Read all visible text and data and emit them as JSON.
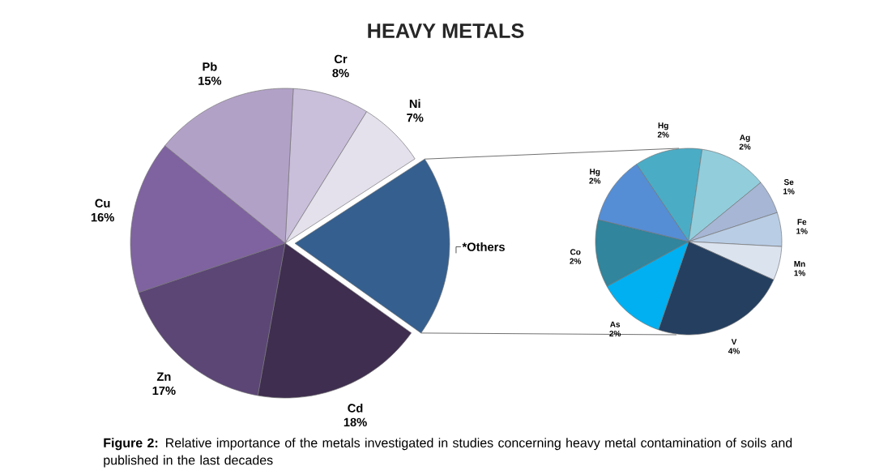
{
  "chart_data": [
    {
      "type": "pie",
      "title": "HEAVY METALS",
      "categories": [
        "Cr",
        "Ni",
        "*Others",
        "Cd",
        "Zn",
        "Cu",
        "Pb"
      ],
      "values": [
        8,
        7,
        19,
        18,
        17,
        16,
        15
      ],
      "value_labels": [
        "8%",
        "7%",
        null,
        "18%",
        "17%",
        "16%",
        "15%"
      ],
      "colors": [
        "#c9bfdb",
        "#e4e0ec",
        "#355f8e",
        "#3f2e4f",
        "#5b4675",
        "#7f63a0",
        "#b2a1c7"
      ],
      "annotations": [
        "**Figure 2:** Relative importance of the metals investigated in studies concerning heavy metal contamination of soils and published in the last decades"
      ]
    },
    {
      "type": "pie",
      "categories": [
        "Hg",
        "Ag",
        "Se",
        "Fe",
        "Mn",
        "V",
        "As",
        "Co",
        "Hg"
      ],
      "values": [
        2,
        2,
        1,
        1,
        1,
        4,
        2,
        2,
        2
      ],
      "value_labels": [
        "2%",
        "2%",
        "1%",
        "1%",
        "1%",
        "4%",
        "2%",
        "2%",
        "2%"
      ],
      "colors": [
        "#4bacc6",
        "#92cddc",
        "#a6b6d4",
        "#b9cde5",
        "#dbe3ef",
        "#243f60",
        "#00b0f0",
        "#31859c",
        "#558ed5"
      ]
    }
  ]
}
